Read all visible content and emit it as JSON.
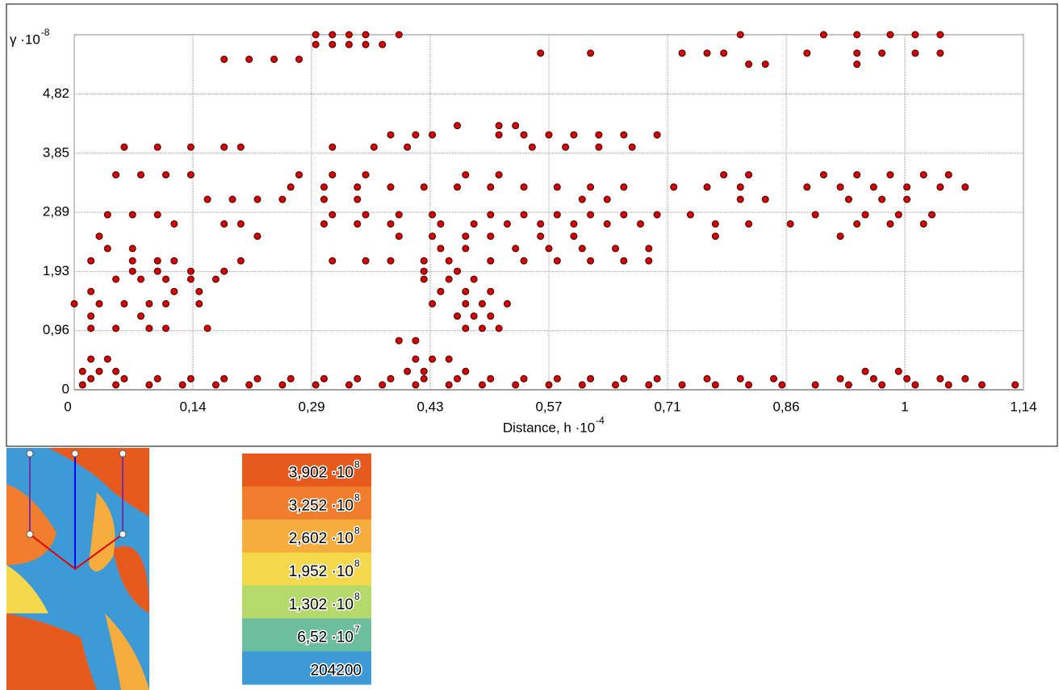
{
  "chart_data": {
    "type": "scatter",
    "y_label": "γ ·10",
    "y_label_exponent": "-8",
    "x_label": "Distance, h ·10",
    "x_label_exponent": "-4",
    "xlim": [
      0,
      1.14
    ],
    "xticks": [
      0,
      {
        "value": 0.1425,
        "label": "0,14"
      },
      {
        "value": 0.285,
        "label": "0,29"
      },
      {
        "value": 0.4275,
        "label": "0,43"
      },
      {
        "value": 0.57,
        "label": "0,57"
      },
      {
        "value": 0.7125,
        "label": "0,71"
      },
      {
        "value": 0.855,
        "label": "0,86"
      },
      {
        "value": 0.9975,
        "label": "1"
      },
      {
        "value": 1.14,
        "label": "1,14"
      }
    ],
    "ylim": [
      0,
      5.78
    ],
    "yticks": [
      0,
      {
        "value": 0.963,
        "label": "0,96"
      },
      {
        "value": 1.926,
        "label": "1,93"
      },
      {
        "value": 2.889,
        "label": "2,89"
      },
      {
        "value": 3.852,
        "label": "3,85"
      },
      {
        "value": 4.815,
        "label": "4,82"
      }
    ],
    "grid": true,
    "color": "#d40000",
    "x": [
      0.01,
      0.05,
      0.09,
      0.13,
      0.17,
      0.21,
      0.25,
      0.29,
      0.33,
      0.37,
      0.41,
      0.45,
      0.49,
      0.53,
      0.57,
      0.61,
      0.65,
      0.69,
      0.73,
      0.77,
      0.81,
      0.85,
      0.89,
      0.93,
      0.97,
      1.01,
      1.05,
      1.09,
      1.13,
      0.02,
      0.06,
      0.1,
      0.14,
      0.18,
      0.22,
      0.26,
      0.3,
      0.34,
      0.38,
      0.42,
      0.46,
      0.5,
      0.54,
      0.58,
      0.62,
      0.66,
      0.7,
      0.76,
      0.8,
      0.84,
      0.92,
      0.96,
      1.0,
      1.04,
      1.07,
      0.01,
      0.03,
      0.05,
      0.4,
      0.42,
      0.47,
      0.95,
      0.99,
      0.02,
      0.04,
      0.41,
      0.43,
      0.45,
      0.39,
      0.41,
      0.02,
      0.05,
      0.09,
      0.11,
      0.16,
      0.47,
      0.49,
      0.51,
      0.02,
      0.08,
      0.46,
      0.48,
      0.5,
      0.0,
      0.03,
      0.06,
      0.09,
      0.11,
      0.15,
      0.43,
      0.47,
      0.49,
      0.52,
      0.02,
      0.12,
      0.15,
      0.44,
      0.47,
      0.5,
      0.05,
      0.08,
      0.11,
      0.14,
      0.17,
      0.42,
      0.45,
      0.48,
      0.07,
      0.1,
      0.14,
      0.18,
      0.42,
      0.46,
      0.02,
      0.07,
      0.1,
      0.12,
      0.2,
      0.31,
      0.35,
      0.38,
      0.42,
      0.45,
      0.5,
      0.54,
      0.58,
      0.62,
      0.66,
      0.69,
      0.04,
      0.07,
      0.44,
      0.47,
      0.53,
      0.57,
      0.61,
      0.65,
      0.69,
      0.03,
      0.22,
      0.39,
      0.43,
      0.47,
      0.5,
      0.56,
      0.6,
      0.77,
      0.92,
      0.12,
      0.18,
      0.2,
      0.3,
      0.34,
      0.38,
      0.44,
      0.48,
      0.52,
      0.56,
      0.6,
      0.64,
      0.68,
      0.77,
      0.81,
      0.86,
      0.94,
      0.98,
      1.02,
      0.04,
      0.07,
      0.1,
      0.31,
      0.35,
      0.39,
      0.43,
      0.5,
      0.54,
      0.58,
      0.62,
      0.66,
      0.7,
      0.74,
      0.89,
      0.95,
      0.99,
      1.03,
      0.16,
      0.19,
      0.22,
      0.25,
      0.3,
      0.34,
      0.61,
      0.64,
      0.8,
      0.83,
      0.93,
      0.97,
      1.0,
      0.26,
      0.3,
      0.34,
      0.38,
      0.42,
      0.46,
      0.5,
      0.54,
      0.58,
      0.62,
      0.66,
      0.72,
      0.76,
      0.8,
      0.88,
      0.92,
      0.96,
      1.0,
      1.04,
      1.07,
      0.05,
      0.08,
      0.11,
      0.14,
      0.27,
      0.31,
      0.35,
      0.47,
      0.51,
      0.78,
      0.81,
      0.9,
      0.94,
      0.98,
      1.02,
      1.05,
      0.06,
      0.1,
      0.14,
      0.18,
      0.2,
      0.31,
      0.36,
      0.4,
      0.55,
      0.59,
      0.63,
      0.67,
      0.38,
      0.41,
      0.43,
      0.51,
      0.54,
      0.57,
      0.6,
      0.63,
      0.66,
      0.7,
      0.46,
      0.51,
      0.53,
      0.81,
      0.83,
      0.94,
      0.18,
      0.21,
      0.24,
      0.27,
      0.56,
      0.62,
      0.73,
      0.76,
      0.78,
      0.88,
      0.94,
      0.97,
      1.01,
      1.04,
      0.29,
      0.31,
      0.33,
      0.35,
      0.37,
      0.29,
      0.31,
      0.33,
      0.35,
      0.39,
      0.8,
      0.9,
      0.94,
      0.98,
      1.01,
      1.04
    ],
    "values": [
      0.08,
      0.08,
      0.08,
      0.08,
      0.08,
      0.08,
      0.08,
      0.08,
      0.08,
      0.08,
      0.08,
      0.08,
      0.08,
      0.08,
      0.08,
      0.08,
      0.08,
      0.08,
      0.08,
      0.08,
      0.08,
      0.08,
      0.08,
      0.08,
      0.08,
      0.08,
      0.08,
      0.08,
      0.08,
      0.18,
      0.18,
      0.18,
      0.18,
      0.18,
      0.18,
      0.18,
      0.18,
      0.18,
      0.18,
      0.18,
      0.18,
      0.18,
      0.18,
      0.18,
      0.18,
      0.18,
      0.18,
      0.18,
      0.18,
      0.18,
      0.18,
      0.18,
      0.18,
      0.18,
      0.18,
      0.3,
      0.3,
      0.3,
      0.3,
      0.3,
      0.3,
      0.3,
      0.3,
      0.5,
      0.5,
      0.5,
      0.5,
      0.5,
      0.8,
      0.8,
      1.0,
      1.0,
      1.0,
      1.0,
      1.0,
      1.0,
      1.0,
      1.0,
      1.2,
      1.2,
      1.2,
      1.2,
      1.2,
      1.4,
      1.4,
      1.4,
      1.4,
      1.4,
      1.4,
      1.4,
      1.4,
      1.4,
      1.4,
      1.6,
      1.6,
      1.6,
      1.6,
      1.6,
      1.6,
      1.8,
      1.8,
      1.8,
      1.8,
      1.8,
      1.8,
      1.8,
      1.8,
      1.93,
      1.93,
      1.93,
      1.93,
      1.93,
      1.93,
      2.1,
      2.1,
      2.1,
      2.1,
      2.1,
      2.1,
      2.1,
      2.1,
      2.1,
      2.1,
      2.1,
      2.1,
      2.1,
      2.1,
      2.1,
      2.1,
      2.3,
      2.3,
      2.3,
      2.3,
      2.3,
      2.3,
      2.3,
      2.3,
      2.3,
      2.5,
      2.5,
      2.5,
      2.5,
      2.5,
      2.5,
      2.5,
      2.5,
      2.5,
      2.5,
      2.7,
      2.7,
      2.7,
      2.7,
      2.7,
      2.7,
      2.7,
      2.7,
      2.7,
      2.7,
      2.7,
      2.7,
      2.7,
      2.7,
      2.7,
      2.7,
      2.7,
      2.7,
      2.7,
      2.85,
      2.85,
      2.85,
      2.85,
      2.85,
      2.85,
      2.85,
      2.85,
      2.85,
      2.85,
      2.85,
      2.85,
      2.85,
      2.85,
      2.85,
      2.85,
      2.85,
      2.85,
      3.1,
      3.1,
      3.1,
      3.1,
      3.1,
      3.1,
      3.1,
      3.1,
      3.1,
      3.1,
      3.1,
      3.1,
      3.1,
      3.3,
      3.3,
      3.3,
      3.3,
      3.3,
      3.3,
      3.3,
      3.3,
      3.3,
      3.3,
      3.3,
      3.3,
      3.3,
      3.3,
      3.3,
      3.3,
      3.3,
      3.3,
      3.3,
      3.3,
      3.5,
      3.5,
      3.5,
      3.5,
      3.5,
      3.5,
      3.5,
      3.5,
      3.5,
      3.5,
      3.5,
      3.5,
      3.5,
      3.5,
      3.5,
      3.5,
      3.95,
      3.95,
      3.95,
      3.95,
      3.95,
      3.95,
      3.95,
      3.95,
      3.95,
      3.95,
      3.95,
      3.95,
      4.15,
      4.15,
      4.15,
      4.15,
      4.15,
      4.15,
      4.15,
      4.15,
      4.15,
      4.15,
      4.3,
      4.3,
      4.3,
      5.3,
      5.3,
      5.3,
      5.38,
      5.38,
      5.38,
      5.38,
      5.48,
      5.48,
      5.48,
      5.48,
      5.48,
      5.48,
      5.48,
      5.48,
      5.48,
      5.48,
      5.62,
      5.62,
      5.62,
      5.62,
      5.62,
      5.78,
      5.78,
      5.78,
      5.78,
      5.78,
      5.78,
      5.78,
      5.78,
      5.78,
      5.78,
      5.78
    ]
  },
  "colorbar": {
    "colors": [
      "#e85a1c",
      "#f07e2c",
      "#f6ad3d",
      "#f5d84c",
      "#b6d96c",
      "#6dbd9f",
      "#3d9ad6"
    ],
    "labels": [
      {
        "text": "3,902 ·10",
        "exp": "8"
      },
      {
        "text": "3,252 ·10",
        "exp": "8"
      },
      {
        "text": "2,602 ·10",
        "exp": "8"
      },
      {
        "text": "1,952 ·10",
        "exp": "8"
      },
      {
        "text": "1,302 ·10",
        "exp": "8"
      },
      {
        "text": "6,52 ·10",
        "exp": "7"
      },
      {
        "text": "204200"
      }
    ]
  }
}
